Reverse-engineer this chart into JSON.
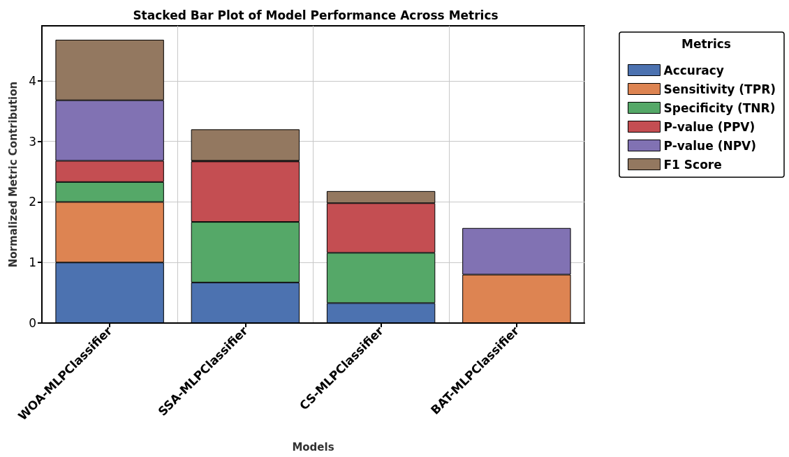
{
  "chart_data": {
    "type": "bar",
    "title": "Stacked Bar Plot of Model Performance Across Metrics",
    "xlabel": "Models",
    "ylabel": "Normalized Metric Contribution",
    "legend_title": "Metrics",
    "categories": [
      "WOA-MLPClassifier",
      "SSA-MLPClassifier",
      "CS-MLPClassifier",
      "BAT-MLPClassifier"
    ],
    "stacked": true,
    "ylim": [
      0,
      4.91
    ],
    "yticks": [
      0,
      1,
      2,
      3,
      4
    ],
    "grid": true,
    "legend": "top right",
    "series": [
      {
        "name": "Accuracy",
        "color": "#4c72b0",
        "values": [
          1.0,
          0.67,
          0.33,
          0
        ]
      },
      {
        "name": "Sensitivity (TPR)",
        "color": "#dd8452",
        "values": [
          1.0,
          0,
          0,
          0.8
        ]
      },
      {
        "name": "Specificity (TNR)",
        "color": "#55a868",
        "values": [
          0.33,
          1.0,
          0.83,
          0
        ]
      },
      {
        "name": "P-value (PPV)",
        "color": "#c44e52",
        "values": [
          0.35,
          1.0,
          0.82,
          0
        ]
      },
      {
        "name": "P-value (NPV)",
        "color": "#8172b3",
        "values": [
          1.0,
          0.01,
          0,
          0.77
        ]
      },
      {
        "name": "F1 Score",
        "color": "#937860",
        "values": [
          1.0,
          0.52,
          0.2,
          0
        ]
      }
    ]
  }
}
